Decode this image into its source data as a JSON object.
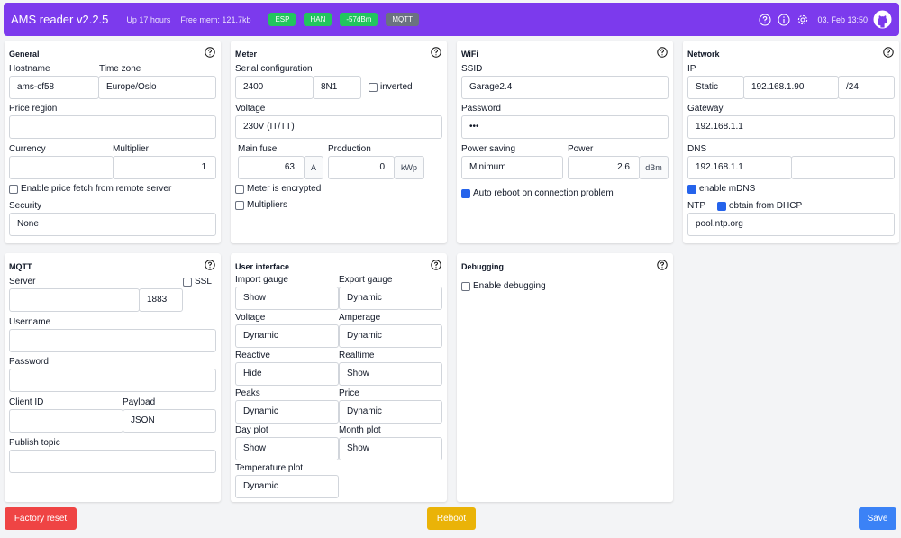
{
  "header": {
    "title": "AMS reader v2.2.5",
    "uptime": "Up 17 hours",
    "free_mem": "Free mem: 121.7kb",
    "badges": [
      {
        "label": "ESP",
        "color": "#22c55e"
      },
      {
        "label": "HAN",
        "color": "#22c55e"
      },
      {
        "label": "-57dBm",
        "color": "#22c55e"
      },
      {
        "label": "MQTT",
        "color": "#6b7280"
      }
    ],
    "date": "03. Feb 13:50"
  },
  "general": {
    "title": "General",
    "hostname_label": "Hostname",
    "hostname": "ams-cf58",
    "timezone_label": "Time zone",
    "timezone": "Europe/Oslo",
    "price_region_label": "Price region",
    "price_region": "",
    "currency_label": "Currency",
    "currency": "",
    "multiplier_label": "Multiplier",
    "multiplier": "1",
    "price_fetch_label": "Enable price fetch from remote server",
    "price_fetch": false,
    "security_label": "Security",
    "security": "None"
  },
  "meter": {
    "title": "Meter",
    "serial_label": "Serial configuration",
    "baud": "2400",
    "parity": "8N1",
    "inverted_label": "inverted",
    "inverted": false,
    "voltage_label": "Voltage",
    "voltage": "230V (IT/TT)",
    "main_fuse_label": "Main fuse",
    "main_fuse": "63",
    "main_fuse_unit": "A",
    "production_label": "Production",
    "production": "0",
    "production_unit": "kWp",
    "encrypted_label": "Meter is encrypted",
    "encrypted": false,
    "multipliers_label": "Multipliers",
    "multipliers": false
  },
  "wifi": {
    "title": "WiFi",
    "ssid_label": "SSID",
    "ssid": "Garage2.4",
    "password_label": "Password",
    "password": "•••",
    "power_saving_label": "Power saving",
    "power_saving": "Minimum",
    "power_label": "Power",
    "power": "2.6",
    "power_unit": "dBm",
    "auto_reboot_label": "Auto reboot on connection problem",
    "auto_reboot": true
  },
  "network": {
    "title": "Network",
    "ip_label": "IP",
    "ip_mode": "Static",
    "ip": "192.168.1.90",
    "subnet": "/24",
    "gateway_label": "Gateway",
    "gateway": "192.168.1.1",
    "dns_label": "DNS",
    "dns1": "192.168.1.1",
    "dns2": "",
    "mdns_label": "enable mDNS",
    "mdns": true,
    "ntp_label": "NTP",
    "ntp_dhcp_label": "obtain from DHCP",
    "ntp_dhcp": true,
    "ntp": "pool.ntp.org"
  },
  "mqtt": {
    "title": "MQTT",
    "server_label": "Server",
    "server": "",
    "port": "1883",
    "ssl_label": "SSL",
    "ssl": false,
    "username_label": "Username",
    "username": "",
    "password_label": "Password",
    "password": "",
    "client_id_label": "Client ID",
    "client_id": "",
    "payload_label": "Payload",
    "payload": "JSON",
    "publish_topic_label": "Publish topic",
    "publish_topic": ""
  },
  "ui": {
    "title": "User interface",
    "import_gauge_label": "Import gauge",
    "import_gauge": "Show",
    "export_gauge_label": "Export gauge",
    "export_gauge": "Dynamic",
    "voltage_label": "Voltage",
    "voltage": "Dynamic",
    "amperage_label": "Amperage",
    "amperage": "Dynamic",
    "reactive_label": "Reactive",
    "reactive": "Hide",
    "realtime_label": "Realtime",
    "realtime": "Show",
    "peaks_label": "Peaks",
    "peaks": "Dynamic",
    "price_label": "Price",
    "price": "Dynamic",
    "day_plot_label": "Day plot",
    "day_plot": "Show",
    "month_plot_label": "Month plot",
    "month_plot": "Show",
    "temp_plot_label": "Temperature plot",
    "temp_plot": "Dynamic"
  },
  "debugging": {
    "title": "Debugging",
    "enable_label": "Enable debugging",
    "enable": false
  },
  "buttons": {
    "factory_reset": "Factory reset",
    "reboot": "Reboot",
    "save": "Save"
  },
  "colors": {
    "header_bg": "#7c3aed",
    "badge_ok": "#22c55e",
    "badge_off": "#6b7280",
    "checkbox_on": "#2563eb",
    "danger": "#ef4444",
    "warning": "#eab308",
    "primary": "#3b82f6"
  }
}
